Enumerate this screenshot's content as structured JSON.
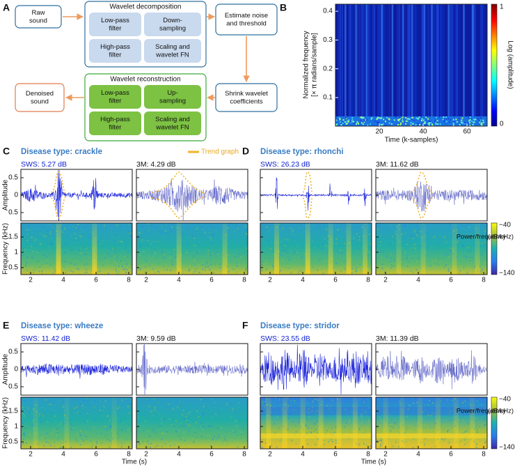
{
  "panel_labels": [
    "A",
    "B",
    "C",
    "D",
    "E",
    "F"
  ],
  "diagram": {
    "raw": [
      "Raw",
      "sound"
    ],
    "decomposition": {
      "title": "Wavelet decomposition",
      "boxes": [
        [
          "Low-pass",
          "filter"
        ],
        [
          "Down-",
          "sampling"
        ],
        [
          "High-pass",
          "filter"
        ],
        [
          "Scaling and",
          "wavelet FN"
        ]
      ]
    },
    "estimate": [
      "Estimate noise",
      "and threshold"
    ],
    "shrink": [
      "Shrink wavelet",
      "coefficients"
    ],
    "reconstruction": {
      "title": "Wavelet reconstruction",
      "boxes": [
        [
          "Low-pass",
          "filter"
        ],
        [
          "Up-",
          "sampling"
        ],
        [
          "High-pass",
          "filter"
        ],
        [
          "Scaling and",
          "wavelet FN"
        ]
      ]
    },
    "denoised": [
      "Denoised",
      "sound"
    ]
  },
  "panel_b": {
    "ylabel": [
      "Normalized frequency",
      "[× π radians/sample]"
    ],
    "xlabel": "Time (k-samples)",
    "yticks": [
      "0.1",
      "0.2",
      "0.3",
      "0.4"
    ],
    "xticks": [
      "20",
      "40",
      "60"
    ],
    "colorbar": {
      "label": "Log (amplitude)",
      "max": "1",
      "min": "0"
    }
  },
  "disease_panels": [
    {
      "title": "Disease type: crackle",
      "sws": "SWS: 5.27 dB",
      "m3": "3M: 4.29 dB"
    },
    {
      "title": "Disease type: rhonchi",
      "sws": "SWS: 26.23 dB",
      "m3": "3M: 11.62 dB"
    },
    {
      "title": "Disease type: wheeze",
      "sws": "SWS: 11.42 dB",
      "m3": "3M: 9.59 dB"
    },
    {
      "title": "Disease type: stridor",
      "sws": "SWS: 23.55 dB",
      "m3": "3M: 11.39 dB"
    }
  ],
  "legend": "Trend graph",
  "waveform_axis": {
    "label": "Amplitude",
    "ticks": [
      "0.5",
      "0",
      "0.5"
    ]
  },
  "spectrogram_axis": {
    "label": "Frequency (kHz)",
    "ticks": [
      "1.5",
      "1",
      "0.5"
    ]
  },
  "time_axis": {
    "label": "Time (s)",
    "ticks": [
      "2",
      "4",
      "6",
      "8"
    ]
  },
  "power_colorbar": {
    "label": [
      "Power/frequency",
      "(dB/kHz)"
    ],
    "max": "−40",
    "min": "−140"
  }
}
